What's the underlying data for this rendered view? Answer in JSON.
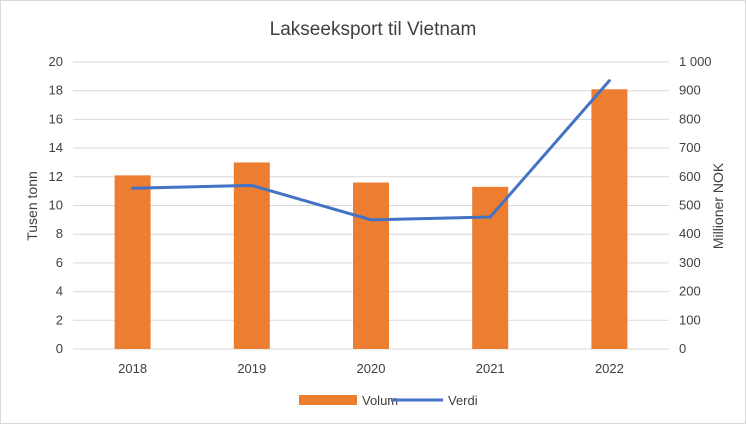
{
  "chart_data": {
    "type": "bar",
    "title": "Lakseeksport til Vietnam",
    "categories": [
      "2018",
      "2019",
      "2020",
      "2021",
      "2022"
    ],
    "series": [
      {
        "name": "Volum",
        "kind": "bar",
        "axis": "left",
        "color": "#ED7D31",
        "values": [
          12.1,
          13.0,
          11.6,
          11.3,
          18.1
        ]
      },
      {
        "name": "Verdi",
        "kind": "line",
        "axis": "right",
        "color": "#4472C4",
        "values": [
          560,
          570,
          450,
          460,
          935
        ]
      }
    ],
    "ylabel_left": "Tusen tonn",
    "ylim_left": [
      0,
      20
    ],
    "yticks_left": [
      "0",
      "2",
      "4",
      "6",
      "8",
      "10",
      "12",
      "14",
      "16",
      "18",
      "20"
    ],
    "ylabel_right": "Millioner NOK",
    "ylim_right": [
      0,
      1000
    ],
    "yticks_right": [
      "0",
      "100",
      "200",
      "300",
      "400",
      "500",
      "600",
      "700",
      "800",
      "900",
      "1 000"
    ],
    "grid": true,
    "legend_position": "bottom"
  }
}
